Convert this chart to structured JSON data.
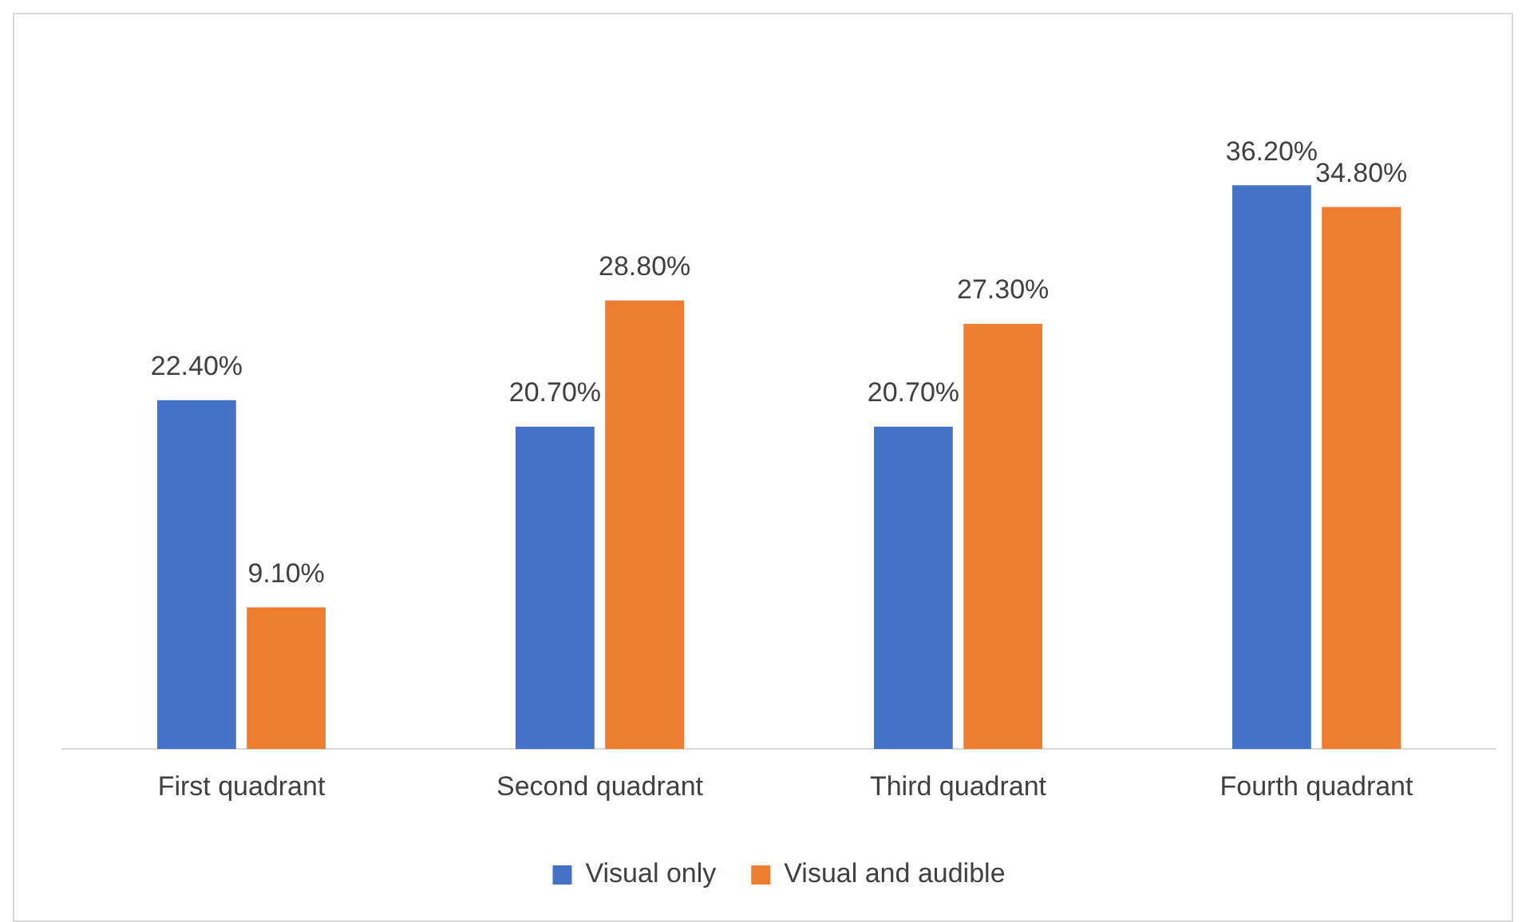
{
  "chart_data": {
    "type": "bar",
    "categories": [
      "First quadrant",
      "Second quadrant",
      "Third quadrant",
      "Fourth quadrant"
    ],
    "legend": "bottom",
    "grid": false,
    "series": [
      {
        "name": "Visual only",
        "color": "#4472c4",
        "values": [
          22.4,
          20.7,
          20.7,
          36.2
        ],
        "value_labels": [
          "22.40%",
          "20.70%",
          "20.70%",
          "36.20%"
        ]
      },
      {
        "name": "Visual and audible",
        "color": "#ed7d31",
        "values": [
          9.1,
          28.8,
          27.3,
          34.8
        ],
        "value_labels": [
          "9.10%",
          "28.80%",
          "27.30%",
          "34.80%"
        ]
      }
    ]
  }
}
